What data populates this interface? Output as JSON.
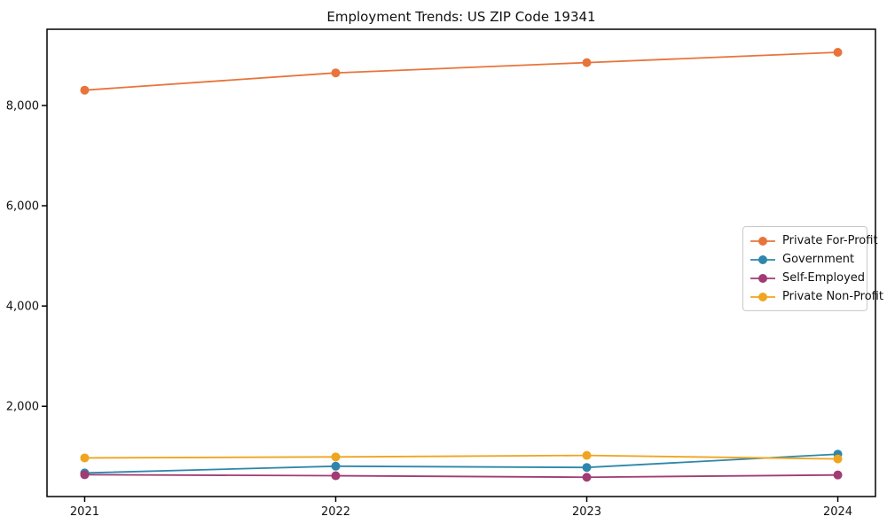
{
  "title": "Employment Trends: US ZIP Code 19341",
  "chart_data": {
    "type": "line",
    "title": "Employment Trends: US ZIP Code 19341",
    "x": [
      2021,
      2022,
      2023,
      2024
    ],
    "categories": [
      "2021",
      "2022",
      "2023",
      "2024"
    ],
    "series": [
      {
        "name": "Private For-Profit",
        "color": "#e8743b",
        "values": [
          8305,
          8650,
          8855,
          9060
        ]
      },
      {
        "name": "Government",
        "color": "#2e86ab",
        "values": [
          670,
          805,
          780,
          1045
        ]
      },
      {
        "name": "Self-Employed",
        "color": "#a23b72",
        "values": [
          635,
          615,
          585,
          630
        ]
      },
      {
        "name": "Private Non-Profit",
        "color": "#efa51e",
        "values": [
          970,
          990,
          1020,
          950
        ]
      }
    ],
    "xlabel": "",
    "ylabel": "",
    "yticks": [
      2000,
      4000,
      6000,
      8000
    ],
    "ytick_labels": [
      "2,000",
      "4,000",
      "6,000",
      "8,000"
    ],
    "xtick_labels": [
      "2021",
      "2022",
      "2023",
      "2024"
    ],
    "ylim": [
      200,
      9520
    ],
    "xlim": [
      2020.85,
      2024.15
    ],
    "grid": false,
    "legend_position": "center-right",
    "marker": "circle",
    "axis_color": "#000000"
  }
}
